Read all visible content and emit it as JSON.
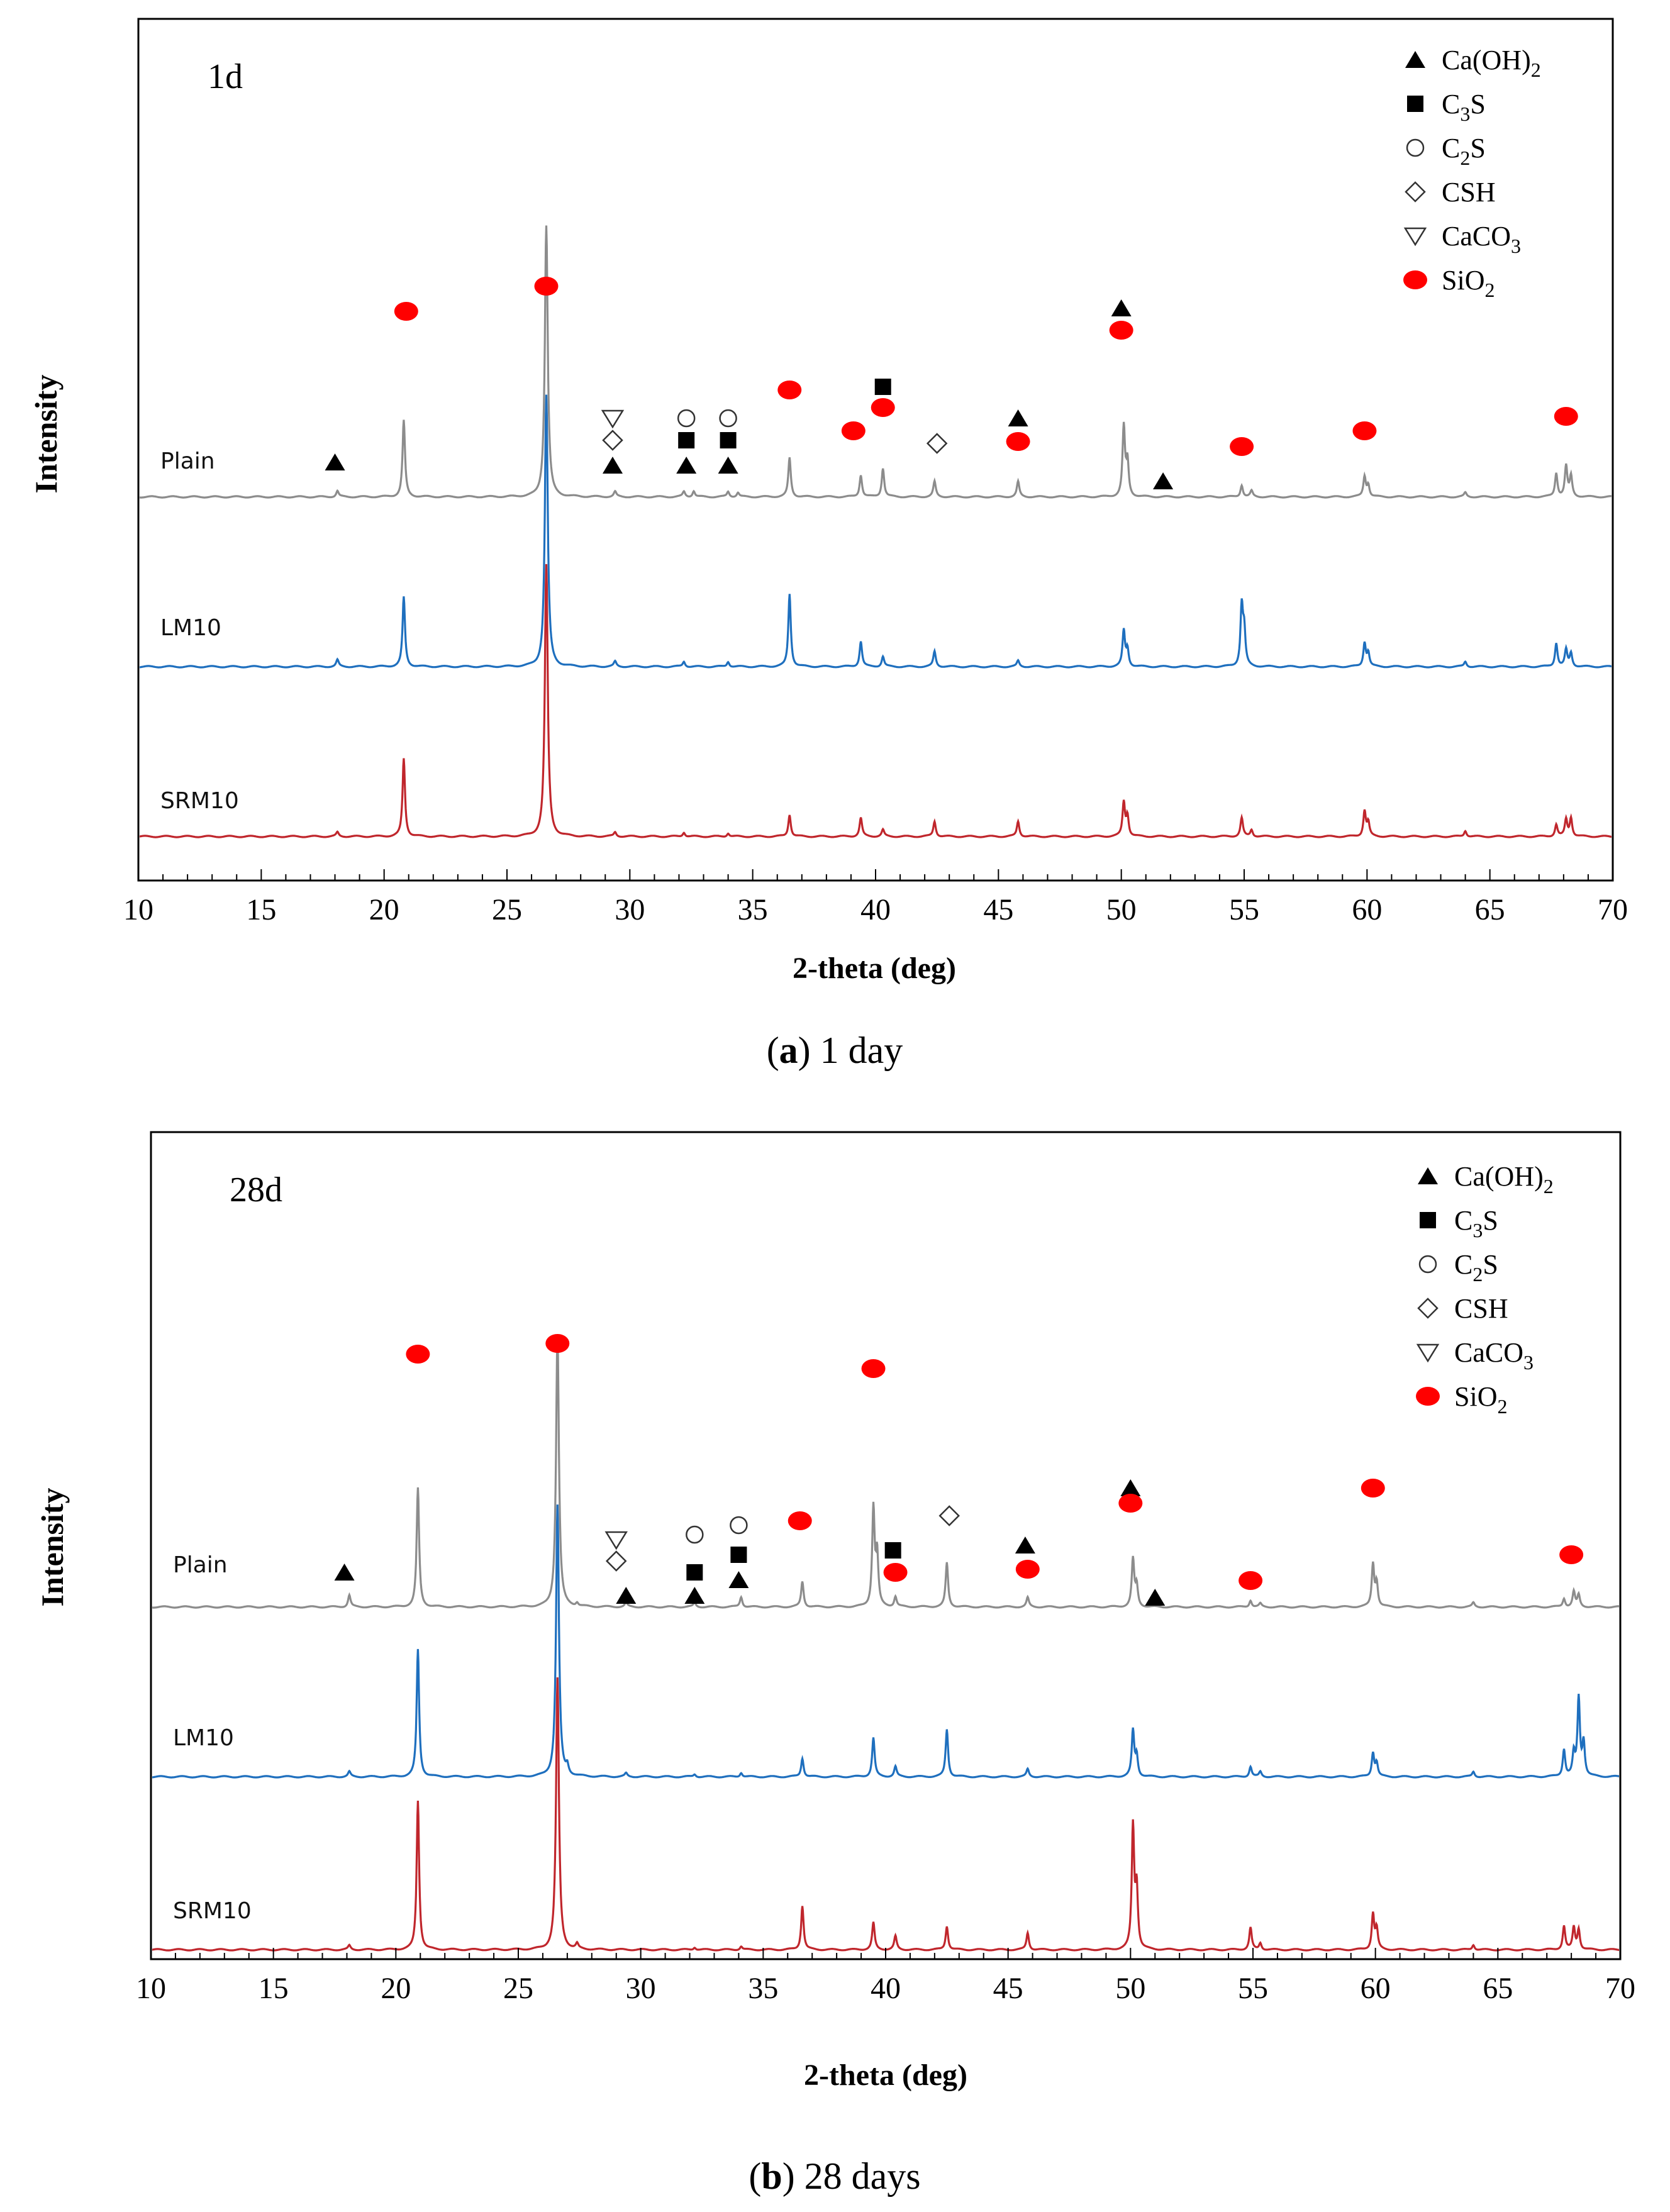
{
  "chart_data": [
    {
      "type": "line",
      "panel_tag": "1d",
      "caption_letter": "a",
      "caption_text": ") 1 day",
      "xlabel": "2-theta (deg)",
      "ylabel": "Intensity",
      "xlim": [
        10,
        70
      ],
      "x_ticks": [
        10,
        15,
        20,
        25,
        30,
        35,
        40,
        45,
        50,
        55,
        60,
        65,
        70
      ],
      "legend": [
        "Ca(OH)2",
        "C3S",
        "C2S",
        "CSH",
        "CaCO3",
        "SiO2"
      ],
      "series": [
        {
          "name": "Plain",
          "color": "#8c8c8c",
          "peaks": [
            [
              18.1,
              0.035
            ],
            [
              20.8,
              0.45
            ],
            [
              26.6,
              1.6
            ],
            [
              29.4,
              0.03
            ],
            [
              32.2,
              0.03
            ],
            [
              32.6,
              0.035
            ],
            [
              34.0,
              0.03
            ],
            [
              34.4,
              0.025
            ],
            [
              36.5,
              0.23
            ],
            [
              39.4,
              0.13
            ],
            [
              40.3,
              0.17
            ],
            [
              42.4,
              0.09
            ],
            [
              45.8,
              0.09
            ],
            [
              50.1,
              0.41
            ],
            [
              50.25,
              0.2
            ],
            [
              54.9,
              0.07
            ],
            [
              55.3,
              0.035
            ],
            [
              59.9,
              0.12
            ],
            [
              60.05,
              0.07
            ],
            [
              64.0,
              0.025
            ],
            [
              67.7,
              0.14
            ],
            [
              68.1,
              0.18
            ],
            [
              68.3,
              0.12
            ]
          ]
        },
        {
          "name": "LM10",
          "color": "#1e6fbe",
          "peaks": [
            [
              18.1,
              0.04
            ],
            [
              20.8,
              0.41
            ],
            [
              26.6,
              1.6
            ],
            [
              29.4,
              0.03
            ],
            [
              32.2,
              0.03
            ],
            [
              34.0,
              0.03
            ],
            [
              36.5,
              0.43
            ],
            [
              39.4,
              0.15
            ],
            [
              40.3,
              0.06
            ],
            [
              42.4,
              0.09
            ],
            [
              45.8,
              0.035
            ],
            [
              50.1,
              0.21
            ],
            [
              50.25,
              0.1
            ],
            [
              54.9,
              0.35
            ],
            [
              55.0,
              0.2
            ],
            [
              59.9,
              0.14
            ],
            [
              60.05,
              0.08
            ],
            [
              64.0,
              0.03
            ],
            [
              67.7,
              0.14
            ],
            [
              68.1,
              0.1
            ],
            [
              68.3,
              0.08
            ]
          ]
        },
        {
          "name": "SRM10",
          "color": "#c0262c",
          "peaks": [
            [
              18.1,
              0.025
            ],
            [
              20.8,
              0.46
            ],
            [
              26.6,
              1.6
            ],
            [
              29.4,
              0.025
            ],
            [
              32.2,
              0.025
            ],
            [
              34.0,
              0.02
            ],
            [
              36.5,
              0.13
            ],
            [
              39.4,
              0.11
            ],
            [
              40.3,
              0.04
            ],
            [
              42.4,
              0.09
            ],
            [
              45.8,
              0.09
            ],
            [
              50.1,
              0.2
            ],
            [
              50.25,
              0.12
            ],
            [
              54.9,
              0.11
            ],
            [
              55.3,
              0.04
            ],
            [
              59.9,
              0.15
            ],
            [
              60.05,
              0.08
            ],
            [
              64.0,
              0.035
            ],
            [
              67.7,
              0.07
            ],
            [
              68.1,
              0.1
            ],
            [
              68.3,
              0.11
            ]
          ]
        }
      ],
      "phase_markers": [
        {
          "phase": "Ca(OH)2",
          "x": [
            18.0,
            29.3,
            32.3,
            34.0,
            45.8,
            50.0,
            51.7
          ]
        },
        {
          "phase": "C3S",
          "x": [
            32.3,
            34.0,
            40.3
          ]
        },
        {
          "phase": "C2S",
          "x": [
            32.3,
            34.0
          ]
        },
        {
          "phase": "CSH",
          "x": [
            29.3,
            42.5
          ]
        },
        {
          "phase": "CaCO3",
          "x": [
            29.3
          ]
        },
        {
          "phase": "SiO2",
          "x": [
            20.9,
            26.6,
            36.5,
            39.1,
            40.3,
            45.8,
            50.0,
            54.9,
            59.9,
            68.1
          ]
        }
      ]
    },
    {
      "type": "line",
      "panel_tag": "28d",
      "caption_letter": "b",
      "caption_text": ") 28 days",
      "xlabel": "2-theta (deg)",
      "ylabel": "Intensity",
      "xlim": [
        10,
        70
      ],
      "x_ticks": [
        10,
        15,
        20,
        25,
        30,
        35,
        40,
        45,
        50,
        55,
        60,
        65,
        70
      ],
      "legend": [
        "Ca(OH)2",
        "C3S",
        "C2S",
        "CSH",
        "CaCO3",
        "SiO2"
      ],
      "series": [
        {
          "name": "Plain",
          "color": "#8c8c8c",
          "peaks": [
            [
              18.1,
              0.07
            ],
            [
              20.9,
              0.7
            ],
            [
              26.6,
              1.6
            ],
            [
              27.4,
              0.02
            ],
            [
              29.4,
              0.025
            ],
            [
              32.2,
              0.025
            ],
            [
              34.1,
              0.06
            ],
            [
              36.6,
              0.15
            ],
            [
              39.5,
              0.58
            ],
            [
              39.65,
              0.3
            ],
            [
              40.4,
              0.06
            ],
            [
              42.5,
              0.26
            ],
            [
              45.8,
              0.055
            ],
            [
              50.1,
              0.28
            ],
            [
              50.25,
              0.12
            ],
            [
              54.9,
              0.04
            ],
            [
              55.3,
              0.02
            ],
            [
              59.9,
              0.25
            ],
            [
              60.05,
              0.14
            ],
            [
              64.0,
              0.025
            ],
            [
              67.7,
              0.05
            ],
            [
              68.1,
              0.09
            ],
            [
              68.3,
              0.07
            ]
          ]
        },
        {
          "name": "LM10",
          "color": "#1e6fbe",
          "peaks": [
            [
              18.1,
              0.03
            ],
            [
              20.9,
              0.75
            ],
            [
              26.6,
              1.6
            ],
            [
              27.0,
              0.05
            ],
            [
              29.4,
              0.02
            ],
            [
              32.2,
              0.015
            ],
            [
              34.1,
              0.025
            ],
            [
              36.6,
              0.11
            ],
            [
              39.5,
              0.23
            ],
            [
              40.4,
              0.06
            ],
            [
              42.5,
              0.28
            ],
            [
              45.8,
              0.045
            ],
            [
              50.1,
              0.27
            ],
            [
              50.25,
              0.12
            ],
            [
              54.9,
              0.06
            ],
            [
              55.3,
              0.03
            ],
            [
              59.9,
              0.14
            ],
            [
              60.05,
              0.08
            ],
            [
              64.0,
              0.03
            ],
            [
              67.7,
              0.16
            ],
            [
              68.1,
              0.13
            ],
            [
              68.3,
              0.46
            ],
            [
              68.5,
              0.2
            ]
          ]
        },
        {
          "name": "SRM10",
          "color": "#c0262c",
          "peaks": [
            [
              18.1,
              0.025
            ],
            [
              20.9,
              0.88
            ],
            [
              26.6,
              1.6
            ],
            [
              27.4,
              0.03
            ],
            [
              32.2,
              0.015
            ],
            [
              34.1,
              0.02
            ],
            [
              36.6,
              0.26
            ],
            [
              39.5,
              0.16
            ],
            [
              40.4,
              0.08
            ],
            [
              42.5,
              0.14
            ],
            [
              45.8,
              0.1
            ],
            [
              50.1,
              0.72
            ],
            [
              50.25,
              0.35
            ],
            [
              54.9,
              0.13
            ],
            [
              55.3,
              0.04
            ],
            [
              59.9,
              0.21
            ],
            [
              60.05,
              0.12
            ],
            [
              64.0,
              0.03
            ],
            [
              67.7,
              0.14
            ],
            [
              68.1,
              0.13
            ],
            [
              68.3,
              0.12
            ]
          ]
        }
      ],
      "phase_markers": [
        {
          "phase": "Ca(OH)2",
          "x": [
            17.9,
            29.4,
            32.2,
            34.0,
            45.7,
            50.0,
            51.0
          ]
        },
        {
          "phase": "C3S",
          "x": [
            32.2,
            34.0,
            40.3
          ]
        },
        {
          "phase": "C2S",
          "x": [
            32.2,
            34.0
          ]
        },
        {
          "phase": "CSH",
          "x": [
            29.0,
            42.6
          ]
        },
        {
          "phase": "CaCO3",
          "x": [
            29.0
          ]
        },
        {
          "phase": "SiO2",
          "x": [
            20.9,
            26.6,
            36.5,
            39.5,
            40.4,
            45.8,
            50.0,
            54.9,
            59.9,
            68.0
          ]
        }
      ]
    }
  ],
  "legend_labels": {
    "caoh2": {
      "pre": "Ca(OH)",
      "sub": "2",
      "post": ""
    },
    "c3s": {
      "pre": "C",
      "sub": "3",
      "post": "S"
    },
    "c2s": {
      "pre": "C",
      "sub": "2",
      "post": "S"
    },
    "csh": {
      "pre": "CSH",
      "sub": "",
      "post": ""
    },
    "caco3": {
      "pre": "CaCO",
      "sub": "3",
      "post": ""
    },
    "sio2": {
      "pre": "SiO",
      "sub": "2",
      "post": ""
    }
  },
  "colors": {
    "plain": "#8c8c8c",
    "lm10": "#1e6fbe",
    "srm10": "#c0262c",
    "sio2_marker": "#ff0000"
  }
}
